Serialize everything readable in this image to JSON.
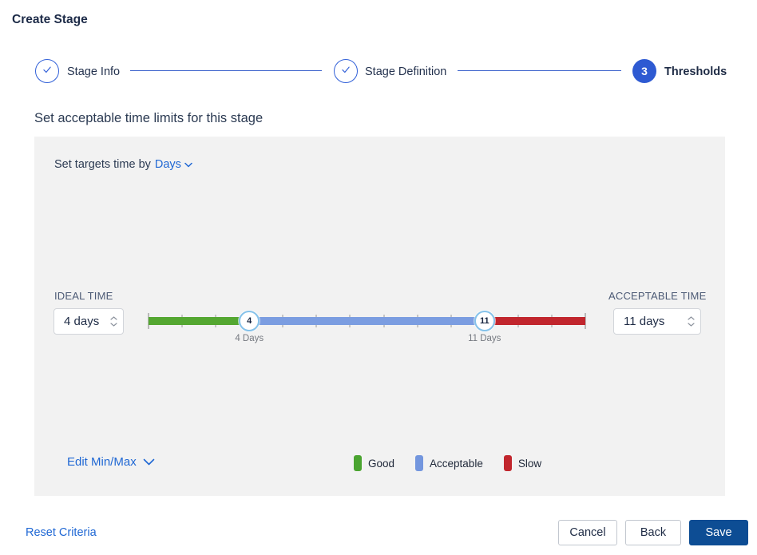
{
  "window": {
    "title": "Create Stage"
  },
  "stepper": {
    "steps": [
      {
        "label": "Stage Info",
        "state": "complete"
      },
      {
        "label": "Stage Definition",
        "state": "complete"
      },
      {
        "label": "Thresholds",
        "state": "active",
        "number": "3"
      }
    ]
  },
  "content": {
    "heading": "Set acceptable time limits for this stage",
    "targets_label": "Set targets time by",
    "unit_dropdown": {
      "value": "Days"
    },
    "ideal_time": {
      "label": "IDEAL TIME",
      "value": "4 days"
    },
    "acceptable_time": {
      "label": "ACCEPTABLE TIME",
      "value": "11 days"
    },
    "slider": {
      "min": 1,
      "max": 14,
      "handles": [
        {
          "value": 4,
          "label": "4 Days"
        },
        {
          "value": 11,
          "label": "11 Days"
        }
      ],
      "segments": [
        {
          "name": "good",
          "from": 1,
          "to": 4,
          "color": "#54a731"
        },
        {
          "name": "acceptable",
          "from": 4,
          "to": 11,
          "color": "#7b9de1"
        },
        {
          "name": "slow",
          "from": 11,
          "to": 14,
          "color": "#c1262d"
        }
      ]
    },
    "edit_minmax_label": "Edit Min/Max",
    "legend": [
      {
        "label": "Good",
        "color": "#4aa430"
      },
      {
        "label": "Acceptable",
        "color": "#7396de"
      },
      {
        "label": "Slow",
        "color": "#c1262d"
      }
    ]
  },
  "footer": {
    "reset_label": "Reset Criteria",
    "cancel_label": "Cancel",
    "back_label": "Back",
    "save_label": "Save"
  },
  "colors": {
    "accent_blue": "#2e5ad2",
    "link_blue": "#2068d4",
    "save_blue": "#0d4d94",
    "panel_bg": "#f2f2f2"
  }
}
